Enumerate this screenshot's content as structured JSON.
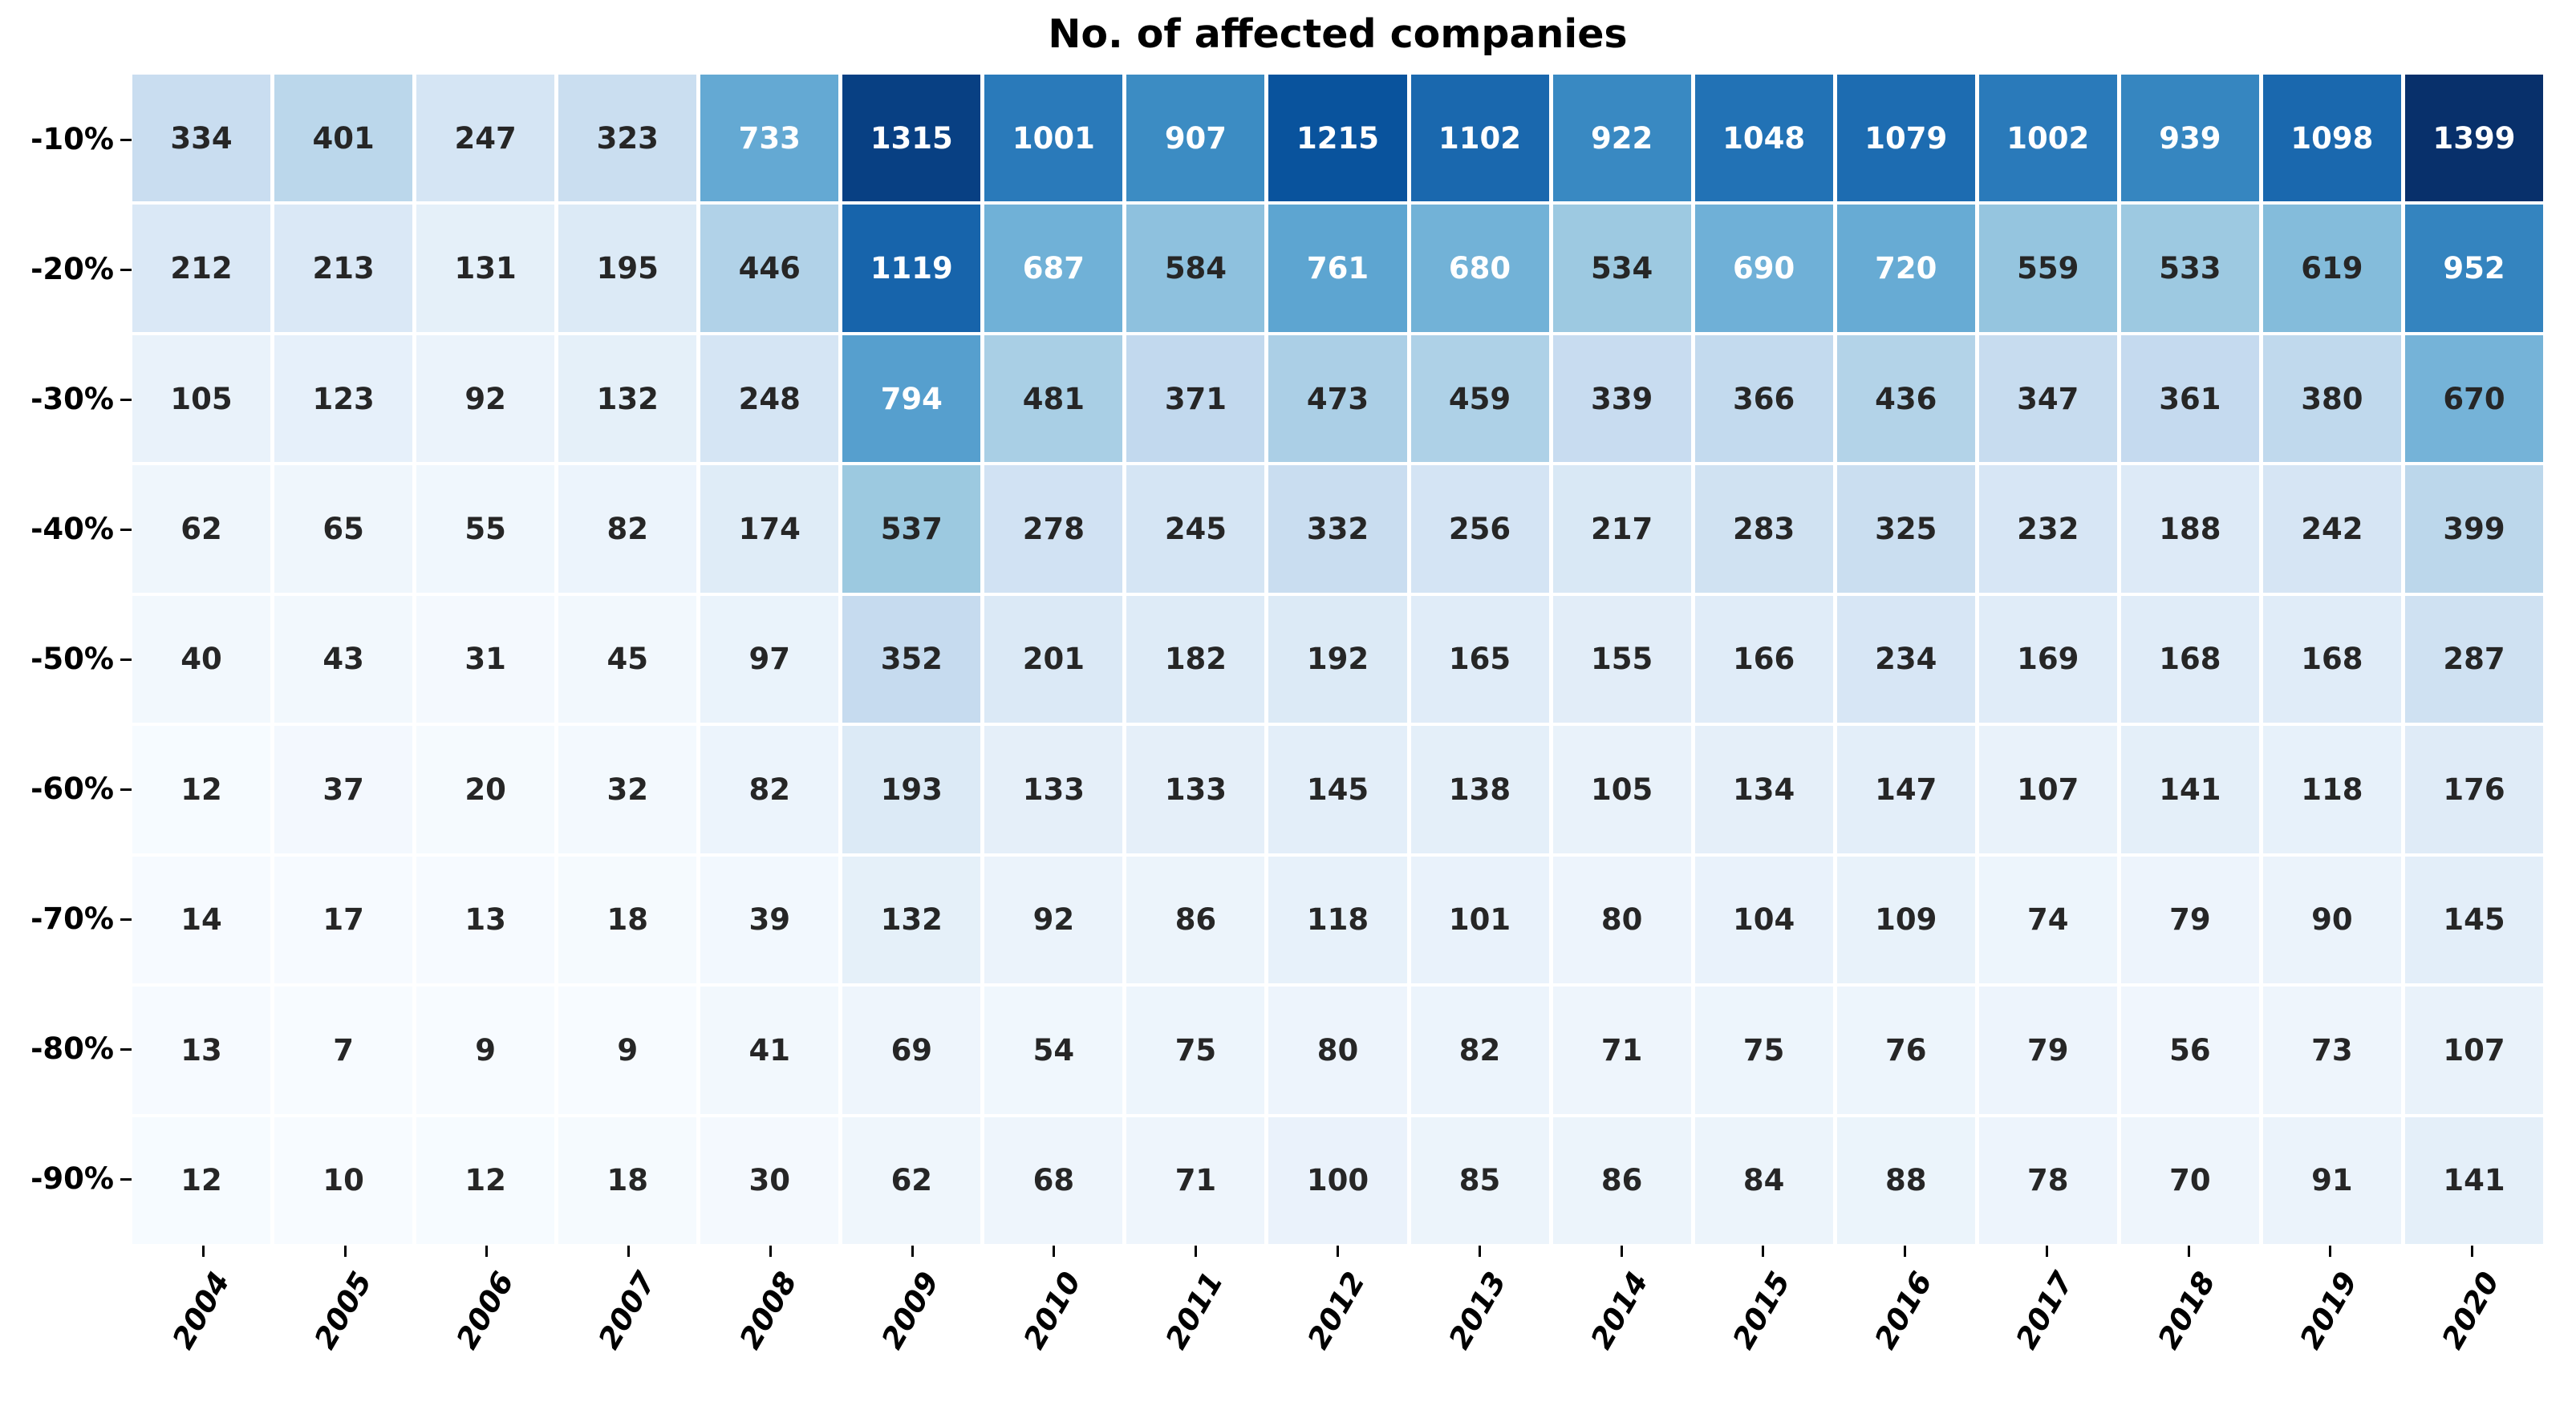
{
  "title": "No. of affected companies",
  "chart_data": {
    "type": "heatmap",
    "title": "No. of affected companies",
    "rows": [
      "-10%",
      "-20%",
      "-30%",
      "-40%",
      "-50%",
      "-60%",
      "-70%",
      "-80%",
      "-90%"
    ],
    "columns": [
      "2004",
      "2005",
      "2006",
      "2007",
      "2008",
      "2009",
      "2010",
      "2011",
      "2012",
      "2013",
      "2014",
      "2015",
      "2016",
      "2017",
      "2018",
      "2019",
      "2020"
    ],
    "values": [
      [
        334,
        401,
        247,
        323,
        733,
        1315,
        1001,
        907,
        1215,
        1102,
        922,
        1048,
        1079,
        1002,
        939,
        1098,
        1399
      ],
      [
        212,
        213,
        131,
        195,
        446,
        1119,
        687,
        584,
        761,
        680,
        534,
        690,
        720,
        559,
        533,
        619,
        952
      ],
      [
        105,
        123,
        92,
        132,
        248,
        794,
        481,
        371,
        473,
        459,
        339,
        366,
        436,
        347,
        361,
        380,
        670
      ],
      [
        62,
        65,
        55,
        82,
        174,
        537,
        278,
        245,
        332,
        256,
        217,
        283,
        325,
        232,
        188,
        242,
        399
      ],
      [
        40,
        43,
        31,
        45,
        97,
        352,
        201,
        182,
        192,
        165,
        155,
        166,
        234,
        169,
        168,
        168,
        287
      ],
      [
        12,
        37,
        20,
        32,
        82,
        193,
        133,
        133,
        145,
        138,
        105,
        134,
        147,
        107,
        141,
        118,
        176
      ],
      [
        14,
        17,
        13,
        18,
        39,
        132,
        92,
        86,
        118,
        101,
        80,
        104,
        109,
        74,
        79,
        90,
        145
      ],
      [
        13,
        7,
        9,
        9,
        41,
        69,
        54,
        75,
        80,
        82,
        71,
        75,
        76,
        79,
        56,
        73,
        107
      ],
      [
        12,
        10,
        12,
        18,
        30,
        62,
        68,
        71,
        100,
        85,
        86,
        84,
        88,
        78,
        70,
        91,
        141
      ]
    ],
    "colormap": "Blues",
    "colormap_anchors": [
      {
        "t": 0.0,
        "hex": "#f7fbff"
      },
      {
        "t": 0.125,
        "hex": "#deebf7"
      },
      {
        "t": 0.25,
        "hex": "#c6dbef"
      },
      {
        "t": 0.375,
        "hex": "#9ecae1"
      },
      {
        "t": 0.5,
        "hex": "#6baed6"
      },
      {
        "t": 0.625,
        "hex": "#4292c6"
      },
      {
        "t": 0.75,
        "hex": "#2171b5"
      },
      {
        "t": 0.875,
        "hex": "#08519c"
      },
      {
        "t": 1.0,
        "hex": "#08306b"
      }
    ],
    "vmin": 7,
    "vmax": 1399,
    "annotation_dark_color": "#262626",
    "annotation_light_color": "#ffffff",
    "white_text_luminance_threshold": 0.408,
    "background_color": "#ffffff",
    "tick_color": "#000000",
    "x_tick_rotation_deg": 60,
    "legend": "none",
    "grid": "off"
  }
}
